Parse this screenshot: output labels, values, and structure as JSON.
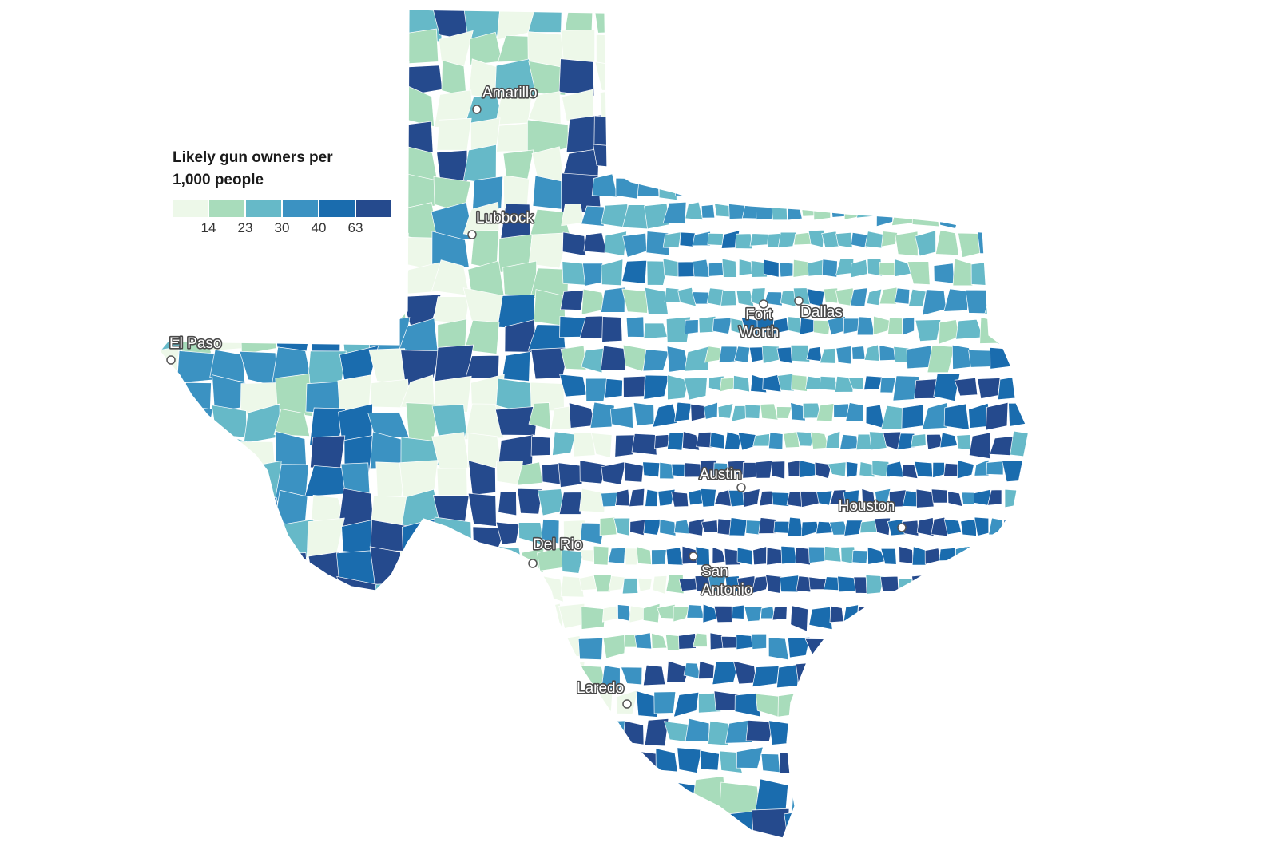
{
  "legend": {
    "title_line1": "Likely gun owners per",
    "title_line2": "1,000 people",
    "ticks": [
      "14",
      "23",
      "30",
      "40",
      "63"
    ],
    "colors": [
      "#edf8e9",
      "#a8dcbb",
      "#66b9c8",
      "#3b92c2",
      "#1a6cae",
      "#254a8d"
    ]
  },
  "cities": [
    {
      "name": "Amarillo",
      "lines": [
        "Amarillo"
      ]
    },
    {
      "name": "Lubbock",
      "lines": [
        "Lubbock"
      ]
    },
    {
      "name": "El Paso",
      "lines": [
        "El Paso"
      ]
    },
    {
      "name": "Fort Worth",
      "lines": [
        "Fort",
        "Worth"
      ]
    },
    {
      "name": "Dallas",
      "lines": [
        "Dallas"
      ]
    },
    {
      "name": "Austin",
      "lines": [
        "Austin"
      ]
    },
    {
      "name": "Houston",
      "lines": [
        "Houston"
      ]
    },
    {
      "name": "Del Rio",
      "lines": [
        "Del Rio"
      ]
    },
    {
      "name": "San Antonio",
      "lines": [
        "San",
        "Antonio"
      ]
    },
    {
      "name": "Laredo",
      "lines": [
        "Laredo"
      ]
    }
  ]
}
